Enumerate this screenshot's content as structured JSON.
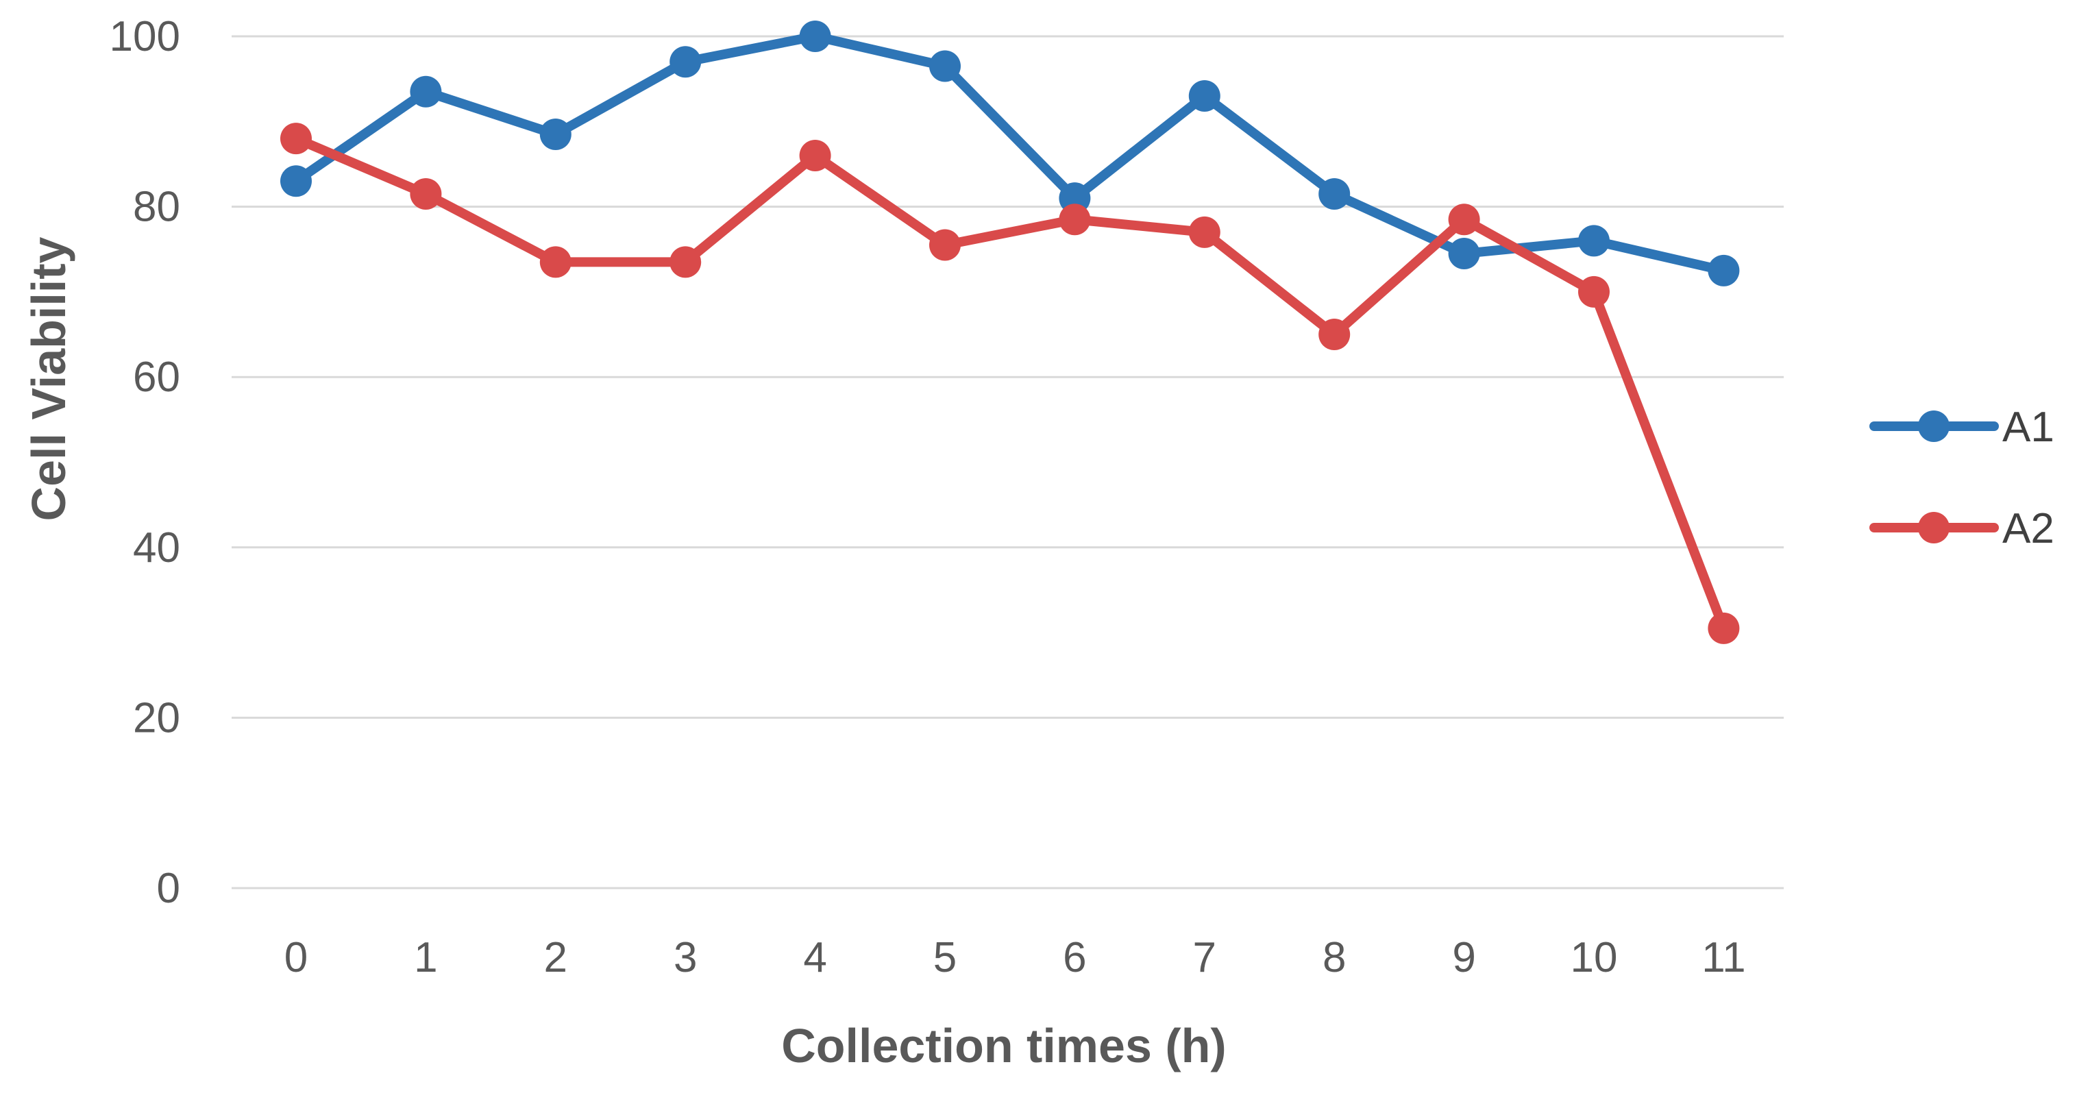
{
  "chart_data": {
    "type": "line",
    "title": "",
    "xlabel": "Collection times (h)",
    "ylabel": "Cell Viability",
    "x": [
      0,
      1,
      2,
      3,
      4,
      5,
      6,
      7,
      8,
      9,
      10,
      11
    ],
    "ylim": [
      0,
      100
    ],
    "yticks": [
      0,
      20,
      40,
      60,
      80,
      100
    ],
    "grid": true,
    "legend_position": "right",
    "series": [
      {
        "name": "A1",
        "color": "#2e75b6",
        "values": [
          83,
          93.5,
          88.5,
          97,
          100,
          96.5,
          81,
          93,
          81.5,
          74.5,
          76,
          72.5
        ]
      },
      {
        "name": "A2",
        "color": "#d94a4a",
        "values": [
          88,
          81.5,
          73.5,
          73.5,
          86,
          75.5,
          78.5,
          77,
          65,
          78.5,
          70,
          30.5
        ]
      }
    ]
  }
}
